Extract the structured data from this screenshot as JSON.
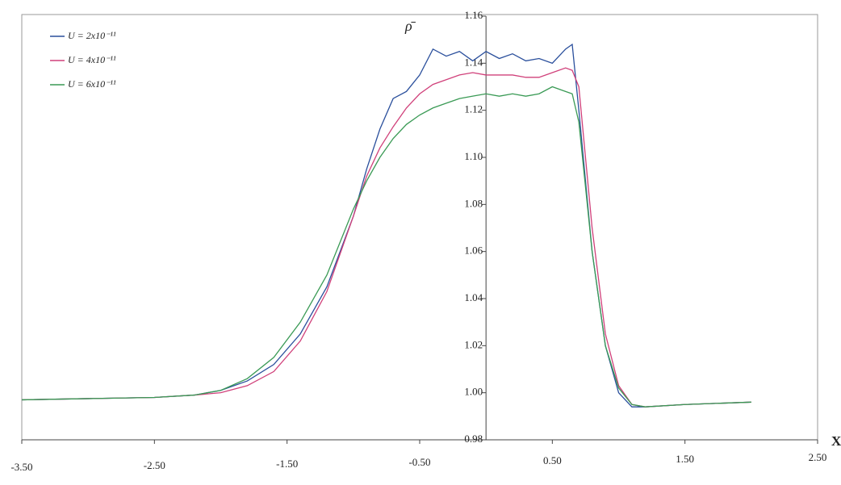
{
  "chart_data": {
    "type": "line",
    "y_label": "ρ̄",
    "x_label": "X",
    "x": [
      -3.5,
      -3.0,
      -2.5,
      -2.2,
      -2.0,
      -1.8,
      -1.6,
      -1.4,
      -1.2,
      -1.0,
      -0.9,
      -0.8,
      -0.7,
      -0.6,
      -0.5,
      -0.4,
      -0.3,
      -0.2,
      -0.1,
      0,
      0.1,
      0.2,
      0.3,
      0.4,
      0.5,
      0.6,
      0.65,
      0.7,
      0.8,
      0.9,
      1.0,
      1.1,
      1.2,
      1.5,
      2.0
    ],
    "series": [
      {
        "name": "U = 2x10⁻¹¹",
        "color": "#2a4f9c",
        "values": [
          0.997,
          0.9975,
          0.998,
          0.999,
          1.001,
          1.005,
          1.012,
          1.025,
          1.045,
          1.075,
          1.095,
          1.112,
          1.125,
          1.128,
          1.135,
          1.146,
          1.143,
          1.145,
          1.141,
          1.145,
          1.142,
          1.144,
          1.141,
          1.142,
          1.14,
          1.146,
          1.148,
          1.12,
          1.06,
          1.02,
          1.0,
          0.994,
          0.994,
          0.995,
          0.996
        ]
      },
      {
        "name": "U = 4x10⁻¹¹",
        "color": "#d0407a",
        "values": [
          0.997,
          0.9975,
          0.998,
          0.999,
          1.0,
          1.003,
          1.009,
          1.022,
          1.043,
          1.075,
          1.092,
          1.104,
          1.113,
          1.121,
          1.127,
          1.131,
          1.133,
          1.135,
          1.136,
          1.135,
          1.135,
          1.135,
          1.134,
          1.134,
          1.136,
          1.138,
          1.137,
          1.13,
          1.07,
          1.025,
          1.003,
          0.995,
          0.994,
          0.995,
          0.996
        ]
      },
      {
        "name": "U = 6x10⁻¹¹",
        "color": "#3a9a55",
        "values": [
          0.997,
          0.9975,
          0.998,
          0.999,
          1.001,
          1.006,
          1.015,
          1.03,
          1.05,
          1.078,
          1.09,
          1.1,
          1.108,
          1.114,
          1.118,
          1.121,
          1.123,
          1.125,
          1.126,
          1.127,
          1.126,
          1.127,
          1.126,
          1.127,
          1.13,
          1.128,
          1.127,
          1.115,
          1.06,
          1.02,
          1.002,
          0.995,
          0.994,
          0.995,
          0.996
        ]
      }
    ],
    "xlim": [
      -3.5,
      2.5
    ],
    "xticks": [
      {
        "value": -3.5,
        "label": "-3.50"
      },
      {
        "value": -2.5,
        "label": "-2.50"
      },
      {
        "value": -1.5,
        "label": "-1.50"
      },
      {
        "value": -0.5,
        "label": "-0.50"
      },
      {
        "value": 0.5,
        "label": "0.50"
      },
      {
        "value": 1.5,
        "label": "1.50"
      },
      {
        "value": 2.5,
        "label": "2.50"
      }
    ],
    "ylim": [
      0.98,
      1.16
    ],
    "yticks": [
      0.98,
      {
        "value": 1.0,
        "label": "1.00"
      },
      1.02,
      1.04,
      1.06,
      1.08,
      {
        "value": 1.1,
        "label": "1.10"
      },
      1.12,
      1.14,
      1.16
    ],
    "legend": "upper left"
  }
}
